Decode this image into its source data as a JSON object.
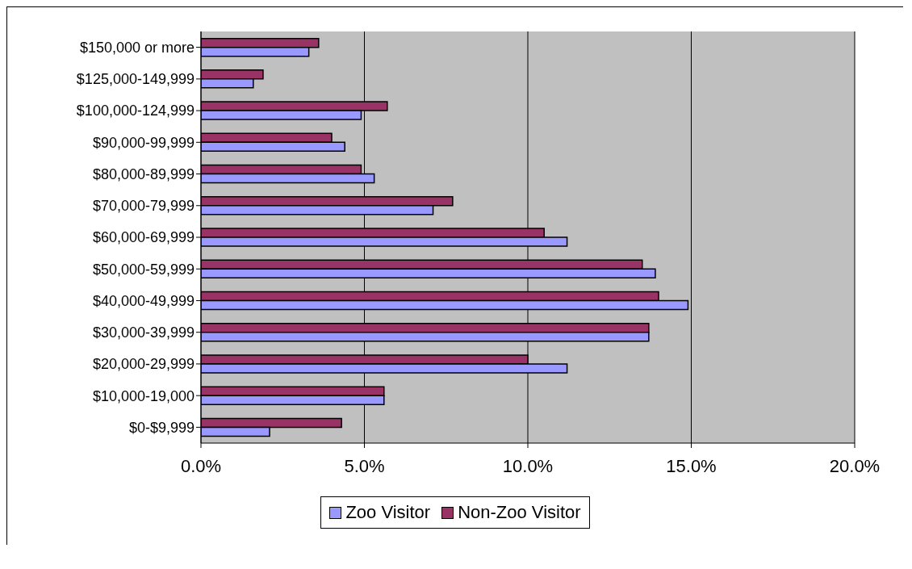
{
  "chart_data": {
    "type": "bar",
    "orientation": "horizontal",
    "categories": [
      "$150,000 or more",
      "$125,000-149,999",
      "$100,000-124,999",
      "$90,000-99,999",
      "$80,000-89,999",
      "$70,000-79,999",
      "$60,000-69,999",
      "$50,000-59,999",
      "$40,000-49,999",
      "$30,000-39,999",
      "$20,000-29,999",
      "$10,000-19,000",
      "$0-$9,999"
    ],
    "series": [
      {
        "name": "Zoo Visitor",
        "color": "#9999ff",
        "values": [
          3.3,
          1.6,
          4.9,
          4.4,
          5.3,
          7.1,
          11.2,
          13.9,
          14.9,
          13.7,
          11.2,
          5.6,
          2.1
        ]
      },
      {
        "name": "Non-Zoo Visitor",
        "color": "#993366",
        "values": [
          3.6,
          1.9,
          5.7,
          4.0,
          4.9,
          7.7,
          10.5,
          13.5,
          14.0,
          13.7,
          10.0,
          5.6,
          4.3
        ]
      }
    ],
    "xlim": [
      0,
      20
    ],
    "xticks": [
      {
        "value": 0,
        "label": "0.0%"
      },
      {
        "value": 5,
        "label": "5.0%"
      },
      {
        "value": 10,
        "label": "10.0%"
      },
      {
        "value": 15,
        "label": "15.0%"
      },
      {
        "value": 20,
        "label": "20.0%"
      }
    ],
    "grid": "x",
    "legend": "bottom"
  }
}
